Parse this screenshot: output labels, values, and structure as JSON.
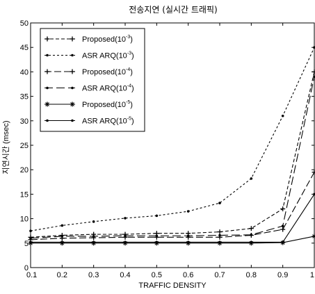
{
  "chart_data": {
    "type": "line",
    "title": "전송지연 (실시간 트래픽)",
    "xlabel": "TRAFFIC DENSITY",
    "ylabel": "지연시간 (msec)",
    "x": [
      0.1,
      0.2,
      0.3,
      0.4,
      0.5,
      0.6,
      0.7,
      0.8,
      0.9,
      1.0
    ],
    "xticks": [
      "0.1",
      "0.2",
      "0.3",
      "0.4",
      "0.5",
      "0.6",
      "0.7",
      "0.8",
      "0.9",
      "1"
    ],
    "yticks": [
      "0",
      "5",
      "10",
      "15",
      "20",
      "25",
      "30",
      "35",
      "40",
      "45",
      "50"
    ],
    "xlim": [
      0.1,
      1.0
    ],
    "ylim": [
      0,
      50
    ],
    "grid": false,
    "legend_position": "top-left",
    "series": [
      {
        "name": "Proposed",
        "exp": "-3",
        "dash": "5,3",
        "marker": "plus",
        "values": [
          6.2,
          6.6,
          6.8,
          6.8,
          7.0,
          7.0,
          7.3,
          8.0,
          12.0,
          40.0
        ]
      },
      {
        "name": "ASR ARQ",
        "exp": "-3",
        "dash": "3,3",
        "marker": "dot",
        "values": [
          7.5,
          8.6,
          9.4,
          10.1,
          10.6,
          11.5,
          13.2,
          18.2,
          31.0,
          45.0
        ]
      },
      {
        "name": "Proposed",
        "exp": "-4",
        "dash": "10,4",
        "marker": "plus",
        "values": [
          5.7,
          6.0,
          6.1,
          6.2,
          6.2,
          6.2,
          6.2,
          6.6,
          7.8,
          19.5
        ]
      },
      {
        "name": "ASR ARQ",
        "exp": "-4",
        "dash": "12,5",
        "marker": "dot",
        "values": [
          6.0,
          6.4,
          6.4,
          6.5,
          6.5,
          6.5,
          6.6,
          6.7,
          8.5,
          39.0
        ]
      },
      {
        "name": "Proposed",
        "exp": "-5",
        "dash": "",
        "marker": "star",
        "values": [
          5.0,
          5.0,
          5.0,
          5.0,
          5.0,
          5.0,
          5.0,
          5.0,
          5.1,
          6.4
        ]
      },
      {
        "name": "ASR ARQ",
        "exp": "-5",
        "dash": "",
        "marker": "dot",
        "values": [
          5.2,
          5.2,
          5.2,
          5.2,
          5.2,
          5.2,
          5.2,
          5.2,
          5.2,
          15.0
        ]
      }
    ]
  }
}
